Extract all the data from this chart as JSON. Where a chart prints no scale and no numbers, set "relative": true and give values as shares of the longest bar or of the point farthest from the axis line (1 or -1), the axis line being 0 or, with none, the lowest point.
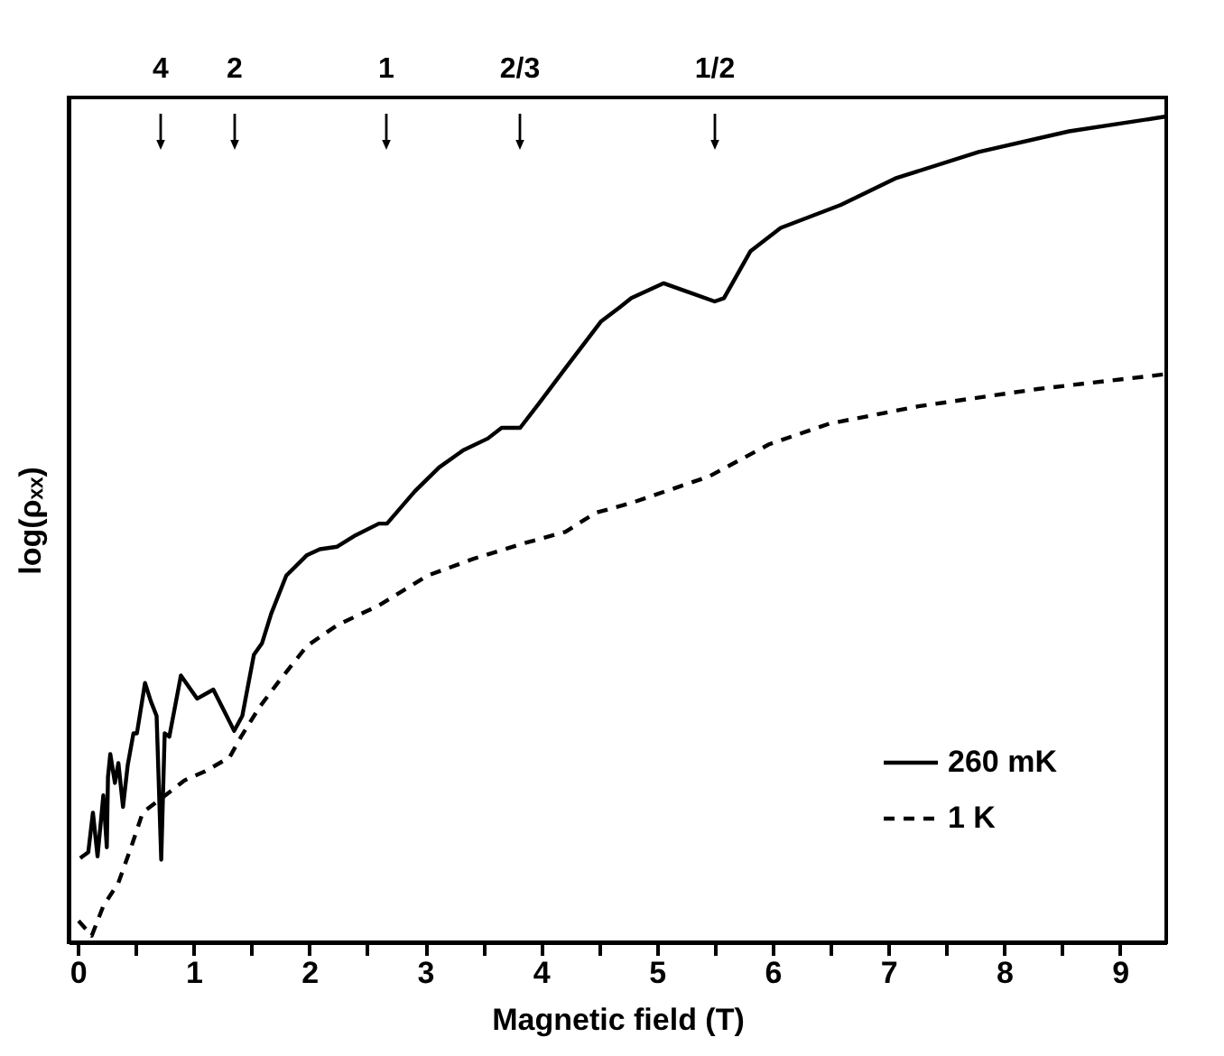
{
  "chart_data": {
    "type": "line",
    "relative": true,
    "xlabel": "Magnetic field (T)",
    "ylabel": "log(ρₓₓ)",
    "xlim": [
      -0.08,
      9.4
    ],
    "xticks": [
      0,
      {
        "value": 0.5,
        "label": null
      },
      1,
      {
        "value": 1.5,
        "label": null
      },
      2,
      {
        "value": 2.5,
        "label": null
      },
      3,
      {
        "value": 3.5,
        "label": null
      },
      4,
      {
        "value": 4.5,
        "label": null
      },
      5,
      {
        "value": 5.5,
        "label": null
      },
      6,
      {
        "value": 6.5,
        "label": null
      },
      7,
      {
        "value": 7.5,
        "label": null
      },
      8,
      {
        "value": 8.5,
        "label": null
      },
      9
    ],
    "legend": "bottom right",
    "grid": false,
    "annotations": [
      "4",
      "2",
      "1",
      "2/3",
      "1/2"
    ],
    "series": [
      {
        "name": "260 mK",
        "color": "#000000",
        "line_style": "solid",
        "x": [
          0.02,
          0.09,
          0.13,
          0.17,
          0.22,
          0.25,
          0.26,
          0.28,
          0.32,
          0.35,
          0.39,
          0.43,
          0.48,
          0.51,
          0.58,
          0.63,
          0.68,
          0.72,
          0.75,
          0.79,
          0.89,
          1.03,
          1.17,
          1.35,
          1.42,
          1.52,
          1.59,
          1.67,
          1.8,
          1.98,
          2.09,
          2.24,
          2.4,
          2.6,
          2.67,
          2.91,
          3.12,
          3.33,
          3.54,
          3.66,
          3.82,
          3.98,
          4.21,
          4.52,
          4.68,
          4.78,
          5.06,
          5.5,
          5.58,
          5.81,
          6.07,
          6.59,
          7.06,
          7.78,
          8.56,
          9.4
        ],
        "values": [
          0.102,
          0.109,
          0.157,
          0.104,
          0.178,
          0.115,
          0.2,
          0.228,
          0.193,
          0.217,
          0.164,
          0.214,
          0.253,
          0.253,
          0.314,
          0.292,
          0.274,
          0.1,
          0.253,
          0.249,
          0.323,
          0.295,
          0.306,
          0.256,
          0.274,
          0.348,
          0.362,
          0.398,
          0.444,
          0.469,
          0.476,
          0.479,
          0.493,
          0.507,
          0.507,
          0.546,
          0.575,
          0.596,
          0.61,
          0.623,
          0.623,
          0.652,
          0.695,
          0.752,
          0.769,
          0.78,
          0.798,
          0.776,
          0.78,
          0.837,
          0.865,
          0.893,
          0.925,
          0.957,
          0.982,
          1.0
        ]
      },
      {
        "name": "1 K",
        "color": "#000000",
        "line_style": "dashed",
        "x": [
          0.006,
          0.12,
          0.22,
          0.35,
          0.46,
          0.56,
          0.82,
          0.92,
          1.1,
          1.31,
          1.41,
          1.57,
          1.72,
          1.98,
          2.24,
          2.6,
          3.02,
          3.43,
          3.85,
          4.21,
          4.47,
          4.78,
          5.45,
          5.97,
          6.49,
          7.26,
          8.29,
          9.4
        ],
        "values": [
          0.026,
          0.008,
          0.044,
          0.072,
          0.115,
          0.157,
          0.185,
          0.196,
          0.207,
          0.224,
          0.249,
          0.285,
          0.313,
          0.359,
          0.384,
          0.408,
          0.444,
          0.465,
          0.483,
          0.497,
          0.52,
          0.532,
          0.564,
          0.603,
          0.628,
          0.649,
          0.67,
          0.688
        ]
      }
    ]
  }
}
